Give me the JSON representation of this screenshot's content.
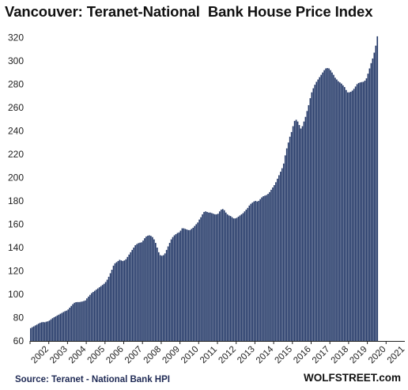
{
  "chart_data": {
    "type": "bar",
    "title": "Vancouver: Teranet-National  Bank House Price Index",
    "source": "Source: Teranet - National Bank HPI",
    "brand": "WOLFSTREET.com",
    "bar_color": "#213666",
    "grid": false,
    "legend": "none",
    "ylim": [
      60,
      325
    ],
    "yticks": [
      60,
      80,
      100,
      120,
      140,
      160,
      180,
      200,
      220,
      240,
      260,
      280,
      300,
      320
    ],
    "xtick_labels": [
      "2002",
      "2003",
      "2004",
      "2005",
      "2006",
      "2007",
      "2008",
      "2009",
      "2010",
      "2011",
      "2012",
      "2013",
      "2014",
      "2015",
      "2016",
      "2017",
      "2018",
      "2019",
      "2020",
      "2021"
    ],
    "start": "2002-01",
    "frequency": "monthly",
    "values": [
      71.0,
      71.8,
      72.5,
      73.3,
      74.0,
      74.8,
      75.5,
      76.0,
      76.2,
      76.0,
      76.5,
      76.8,
      77.5,
      78.5,
      79.5,
      80.3,
      81.0,
      81.8,
      82.5,
      83.3,
      84.0,
      84.8,
      85.5,
      86.0,
      87.0,
      88.5,
      90.0,
      91.5,
      92.7,
      93.2,
      93.3,
      93.3,
      93.5,
      93.8,
      94.2,
      94.7,
      96.5,
      98.0,
      99.5,
      101.0,
      102.0,
      103.0,
      104.0,
      105.0,
      106.0,
      107.0,
      108.0,
      109.0,
      110.5,
      112.5,
      115.0,
      118.0,
      121.0,
      124.5,
      126.5,
      127.5,
      128.5,
      129.5,
      129.0,
      128.5,
      129.0,
      130.0,
      132.0,
      134.0,
      136.0,
      138.0,
      140.0,
      142.0,
      143.0,
      143.8,
      144.2,
      144.5,
      146.0,
      148.0,
      149.5,
      150.2,
      150.5,
      150.0,
      149.0,
      147.0,
      144.0,
      140.0,
      136.0,
      133.5,
      133.0,
      133.5,
      135.0,
      138.0,
      141.0,
      144.0,
      147.0,
      149.0,
      150.5,
      151.5,
      152.5,
      153.0,
      154.5,
      156.5,
      156.5,
      156.0,
      155.5,
      155.0,
      155.0,
      156.0,
      157.0,
      158.5,
      160.0,
      161.5,
      164.0,
      166.0,
      168.5,
      170.5,
      171.0,
      170.5,
      170.0,
      170.0,
      169.5,
      169.0,
      168.5,
      168.5,
      169.0,
      171.0,
      172.5,
      173.0,
      172.0,
      170.0,
      168.5,
      167.5,
      167.0,
      166.0,
      165.0,
      165.0,
      165.5,
      166.5,
      167.5,
      168.5,
      169.5,
      171.0,
      172.5,
      174.0,
      176.0,
      177.5,
      178.5,
      179.5,
      180.0,
      179.5,
      180.0,
      181.5,
      183.0,
      184.0,
      184.5,
      185.0,
      186.0,
      187.5,
      189.5,
      191.5,
      193.5,
      196.0,
      199.0,
      202.0,
      205.0,
      208.0,
      212.0,
      219.0,
      225.0,
      230.0,
      235.0,
      239.0,
      244.0,
      248.5,
      249.5,
      248.0,
      245.0,
      242.0,
      244.0,
      248.0,
      252.0,
      257.0,
      262.0,
      268.0,
      273.0,
      276.5,
      279.5,
      282.0,
      284.0,
      286.0,
      288.0,
      290.0,
      292.0,
      293.5,
      293.8,
      293.5,
      292.0,
      290.0,
      288.0,
      285.5,
      284.0,
      282.5,
      281.5,
      280.5,
      279.0,
      277.5,
      275.0,
      273.0,
      273.0,
      273.5,
      274.5,
      276.0,
      278.0,
      280.0,
      281.0,
      281.5,
      281.8,
      282.0,
      283.0,
      285.0,
      289.0,
      293.5,
      298.0,
      302.0,
      307.0,
      313.0,
      321.0
    ]
  }
}
